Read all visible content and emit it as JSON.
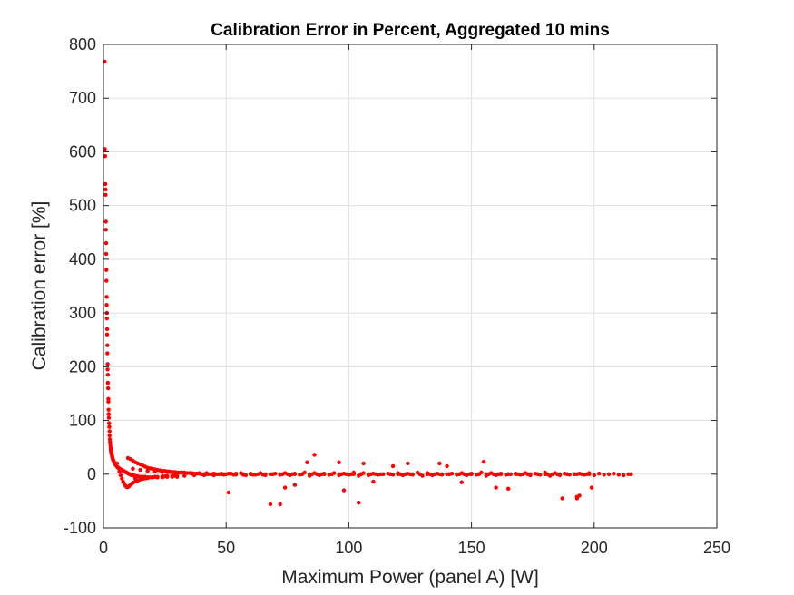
{
  "chart_data": {
    "type": "scatter",
    "title": "Calibration Error in Percent, Aggregated 10 mins",
    "xlabel": "Maximum Power (panel A) [W]",
    "ylabel": "Calibration error [%]",
    "xlim": [
      0,
      250
    ],
    "ylim": [
      -100,
      800
    ],
    "xticks": [
      0,
      50,
      100,
      150,
      200,
      250
    ],
    "yticks": [
      -100,
      0,
      100,
      200,
      300,
      400,
      500,
      600,
      700,
      800
    ],
    "xtick_labels": [
      "0",
      "50",
      "100",
      "150",
      "200",
      "250"
    ],
    "ytick_labels": [
      "-100",
      "0",
      "100",
      "200",
      "300",
      "400",
      "500",
      "600",
      "700",
      "800"
    ],
    "grid": true,
    "marker_color": "#ff0000",
    "series": [
      {
        "x": [
          0.5,
          0.6,
          0.7,
          0.8,
          0.9,
          0.9,
          1.0,
          1.0,
          1.1,
          1.1,
          1.2,
          1.2,
          1.3,
          1.3,
          1.4,
          1.4,
          1.5,
          1.5,
          1.6,
          1.6,
          1.7,
          1.7,
          1.8,
          1.8,
          1.9,
          2.0,
          2.0,
          2.1,
          2.1,
          2.2,
          2.3,
          2.4,
          2.5,
          2.5,
          2.6,
          2.7,
          2.8,
          2.9,
          3.0,
          3.0,
          3.1,
          3.2,
          3.3,
          3.4,
          3.5,
          3.6,
          3.7,
          3.8,
          4.0,
          4.2,
          4.4,
          4.6,
          4.8,
          5.0,
          5.2,
          5.5,
          5.8,
          6.0,
          6.3,
          6.6,
          7.0,
          7.4,
          7.8,
          8.2,
          8.6,
          9.0,
          9.4,
          9.8,
          10.2,
          10.6,
          11.0,
          11.5,
          12.0,
          12.5,
          13.0,
          13.5,
          14.0,
          15.0,
          16.0,
          17.0,
          18.0,
          19.0,
          20.0,
          22.0,
          24.0,
          26.0,
          28.0,
          30.0,
          5.5,
          6.0,
          6.5,
          7.0,
          7.5,
          8.0,
          8.5,
          9.0,
          9.5,
          10.0,
          10.5,
          11.0,
          11.5,
          12.0,
          13.0,
          14.0,
          15.0,
          16.0,
          17.0,
          18.0,
          20.0,
          22.0,
          24.0,
          26.0,
          28.0,
          30.0,
          10,
          11,
          12,
          13,
          14,
          15,
          16,
          17,
          18,
          19,
          20,
          21,
          22,
          23,
          24,
          25,
          26,
          27,
          28,
          29,
          30,
          31,
          32,
          33,
          34,
          35,
          36,
          37,
          38,
          39,
          40,
          41,
          42,
          43,
          44,
          45,
          46,
          47,
          48,
          49,
          50,
          52,
          54,
          56,
          58,
          60,
          62,
          64,
          66,
          68,
          70,
          72,
          74,
          76,
          78,
          80,
          82,
          84,
          86,
          88,
          90,
          92,
          94,
          96,
          98,
          100,
          102,
          104,
          106,
          108,
          110,
          112,
          114,
          116,
          118,
          120,
          122,
          124,
          126,
          128,
          130,
          132,
          134,
          136,
          138,
          140,
          142,
          144,
          146,
          148,
          150,
          152,
          154,
          156,
          158,
          160,
          162,
          164,
          166,
          168,
          170,
          172,
          174,
          176,
          178,
          180,
          182,
          184,
          186,
          188,
          190,
          192,
          194,
          196,
          198,
          200,
          202,
          204,
          206,
          208,
          210,
          212,
          214,
          215,
          12,
          15,
          18,
          21,
          24,
          27,
          30,
          33,
          36,
          39,
          42,
          45,
          48,
          51,
          54,
          57,
          60,
          63,
          66,
          69,
          72,
          75,
          78,
          81,
          84,
          87,
          90,
          93,
          96,
          99,
          102,
          105,
          108,
          111,
          114,
          117,
          120,
          123,
          126,
          129,
          132,
          135,
          138,
          141,
          144,
          147,
          150,
          153,
          156,
          159,
          162,
          165,
          168,
          171,
          174,
          177,
          180,
          183,
          186,
          189,
          192,
          195,
          198,
          13,
          17,
          21,
          25,
          29,
          33,
          37,
          41,
          45,
          49,
          53,
          57,
          61,
          65,
          69,
          73,
          77,
          81,
          85,
          89,
          93,
          97,
          101,
          105,
          109,
          113,
          117,
          121,
          125,
          129,
          133,
          137,
          141,
          145,
          149,
          153,
          157,
          161,
          165,
          169,
          173,
          177,
          181,
          185,
          189,
          193,
          197,
          51,
          68,
          72,
          86,
          96,
          98,
          104,
          106,
          137,
          155,
          160,
          165,
          187,
          193,
          193,
          194,
          199,
          124,
          140,
          146,
          118,
          83,
          78,
          74,
          110
        ],
        "y": [
          768,
          605,
          592,
          540,
          530,
          520,
          470,
          455,
          430,
          410,
          380,
          360,
          330,
          315,
          300,
          290,
          270,
          260,
          240,
          225,
          205,
          195,
          185,
          170,
          160,
          140,
          135,
          120,
          112,
          105,
          95,
          88,
          80,
          72,
          65,
          60,
          55,
          50,
          48,
          45,
          42,
          40,
          38,
          36,
          34,
          32,
          30,
          28,
          26,
          24,
          22,
          20,
          18,
          17,
          16,
          14,
          13,
          12,
          11,
          10,
          9,
          8,
          7,
          6,
          5,
          4,
          3,
          2,
          1,
          0,
          -1,
          -2,
          -2,
          -3,
          -3,
          -4,
          -4,
          -5,
          -5,
          -5,
          -6,
          -6,
          -6,
          -6,
          -6,
          -5,
          -5,
          -5,
          20,
          12,
          5,
          -2,
          -8,
          -14,
          -18,
          -22,
          -24,
          -24,
          -22,
          -20,
          -18,
          -16,
          -14,
          -12,
          -10,
          -9,
          -8,
          -7,
          -6,
          -5,
          -4,
          -3,
          -3,
          -2,
          30,
          28,
          25,
          22,
          20,
          18,
          16,
          14,
          12,
          11,
          10,
          9,
          8,
          7,
          6,
          6,
          5,
          5,
          4,
          4,
          3,
          3,
          3,
          2,
          2,
          2,
          1,
          1,
          1,
          1,
          0,
          0,
          0,
          0,
          0,
          0,
          0,
          0,
          0,
          0,
          0,
          1,
          -1,
          2,
          -2,
          1,
          -1,
          2,
          -2,
          0,
          1,
          -1,
          2,
          -2,
          1,
          -1,
          3,
          -3,
          2,
          -2,
          1,
          -1,
          2,
          -2,
          1,
          -1,
          3,
          -3,
          2,
          -2,
          1,
          -1,
          0,
          1,
          -1,
          2,
          -2,
          1,
          -1,
          3,
          -3,
          2,
          -2,
          1,
          -1,
          0,
          1,
          -1,
          2,
          -2,
          1,
          -1,
          3,
          -3,
          2,
          -2,
          1,
          -1,
          0,
          1,
          -1,
          2,
          -2,
          1,
          -1,
          3,
          -3,
          2,
          -2,
          1,
          -1,
          0,
          1,
          -1,
          2,
          -2,
          1,
          -1,
          0,
          1,
          -1,
          -2,
          0,
          0,
          10,
          8,
          6,
          5,
          4,
          4,
          3,
          3,
          2,
          2,
          2,
          1,
          1,
          1,
          1,
          0,
          0,
          0,
          0,
          0,
          0,
          0,
          0,
          0,
          0,
          0,
          0,
          0,
          0,
          0,
          0,
          0,
          0,
          0,
          0,
          0,
          0,
          0,
          0,
          0,
          0,
          0,
          0,
          0,
          0,
          0,
          0,
          0,
          0,
          0,
          0,
          0,
          0,
          0,
          0,
          0,
          0,
          0,
          0,
          0,
          0,
          0,
          0,
          -8,
          -6,
          -5,
          -4,
          -3,
          -3,
          -2,
          -2,
          -2,
          -1,
          -1,
          -1,
          -1,
          -1,
          0,
          0,
          0,
          0,
          0,
          0,
          0,
          0,
          0,
          0,
          0,
          0,
          0,
          0,
          0,
          0,
          0,
          0,
          0,
          0,
          0,
          0,
          0,
          0,
          0,
          0,
          0,
          0,
          0,
          0,
          0,
          0,
          0,
          -34,
          -56,
          -56,
          36,
          22,
          -30,
          -53,
          20,
          20,
          23,
          -25,
          -27,
          -45,
          -45,
          -42,
          -40,
          -25,
          20,
          15,
          -15,
          15,
          22,
          -20,
          -25,
          -14
        ]
      }
    ]
  }
}
